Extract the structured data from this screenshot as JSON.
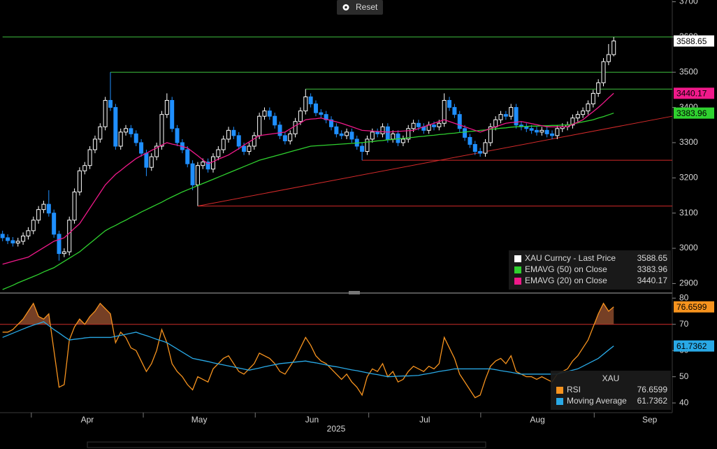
{
  "reset_button": "Reset",
  "chart_data": [
    {
      "type": "candlestick",
      "xlim": [
        -0.5,
        130.4
      ],
      "ylim": [
        2875,
        3705
      ],
      "yticks": [
        2900,
        3000,
        3100,
        3200,
        3300,
        3400,
        3500,
        3600,
        3700
      ],
      "legend": "bottom-right",
      "candles": {
        "name": "XAU Curncy - Last Price",
        "up_color": "#ffffff",
        "down_color": "#1f8fff",
        "open": [
          3040,
          3030,
          3022,
          3015,
          3020,
          3035,
          3050,
          3080,
          3110,
          3125,
          3100,
          3040,
          2985,
          2990,
          3080,
          3160,
          3220,
          3235,
          3280,
          3310,
          3345,
          3420,
          3400,
          3290,
          3330,
          3340,
          3325,
          3300,
          3270,
          3230,
          3260,
          3290,
          3380,
          3420,
          3340,
          3300,
          3280,
          3240,
          3180,
          3235,
          3245,
          3225,
          3260,
          3280,
          3310,
          3335,
          3320,
          3290,
          3275,
          3290,
          3320,
          3375,
          3390,
          3375,
          3350,
          3320,
          3305,
          3325,
          3360,
          3390,
          3430,
          3410,
          3385,
          3380,
          3365,
          3345,
          3325,
          3320,
          3330,
          3310,
          3290,
          3275,
          3310,
          3330,
          3325,
          3345,
          3310,
          3325,
          3300,
          3310,
          3340,
          3355,
          3345,
          3335,
          3350,
          3345,
          3355,
          3420,
          3400,
          3380,
          3340,
          3315,
          3295,
          3275,
          3270,
          3300,
          3345,
          3365,
          3380,
          3375,
          3400,
          3350,
          3345,
          3340,
          3335,
          3330,
          3335,
          3325,
          3320,
          3340,
          3345,
          3350,
          3370,
          3380,
          3390,
          3410,
          3440,
          3470,
          3530,
          3550
        ],
        "high": [
          3050,
          3040,
          3032,
          3030,
          3045,
          3060,
          3090,
          3120,
          3135,
          3165,
          3110,
          3050,
          3000,
          3090,
          3170,
          3230,
          3245,
          3290,
          3320,
          3355,
          3430,
          3500,
          3410,
          3340,
          3350,
          3350,
          3335,
          3310,
          3280,
          3270,
          3300,
          3390,
          3440,
          3430,
          3350,
          3310,
          3290,
          3250,
          3245,
          3255,
          3255,
          3270,
          3290,
          3320,
          3345,
          3345,
          3330,
          3300,
          3300,
          3330,
          3385,
          3400,
          3400,
          3385,
          3360,
          3330,
          3335,
          3370,
          3400,
          3452,
          3440,
          3420,
          3395,
          3390,
          3375,
          3355,
          3335,
          3340,
          3340,
          3320,
          3300,
          3320,
          3340,
          3340,
          3355,
          3355,
          3335,
          3335,
          3320,
          3350,
          3365,
          3365,
          3355,
          3360,
          3360,
          3365,
          3440,
          3430,
          3410,
          3390,
          3350,
          3325,
          3305,
          3285,
          3310,
          3355,
          3375,
          3390,
          3390,
          3410,
          3410,
          3360,
          3355,
          3350,
          3345,
          3345,
          3345,
          3335,
          3350,
          3355,
          3360,
          3380,
          3390,
          3400,
          3420,
          3450,
          3480,
          3540,
          3580,
          3600
        ],
        "low": [
          3020,
          3012,
          3005,
          3005,
          3010,
          3025,
          3040,
          3070,
          3100,
          3090,
          3030,
          2965,
          2975,
          2980,
          3070,
          3150,
          3210,
          3225,
          3270,
          3300,
          3335,
          3390,
          3280,
          3280,
          3320,
          3315,
          3290,
          3260,
          3205,
          3220,
          3250,
          3280,
          3370,
          3330,
          3290,
          3270,
          3230,
          3165,
          3120,
          3225,
          3215,
          3215,
          3250,
          3270,
          3300,
          3310,
          3280,
          3265,
          3265,
          3280,
          3310,
          3365,
          3365,
          3340,
          3310,
          3295,
          3295,
          3315,
          3350,
          3380,
          3400,
          3375,
          3370,
          3355,
          3335,
          3315,
          3310,
          3310,
          3300,
          3280,
          3250,
          3265,
          3300,
          3315,
          3315,
          3300,
          3300,
          3290,
          3290,
          3300,
          3330,
          3335,
          3325,
          3325,
          3335,
          3335,
          3345,
          3390,
          3370,
          3330,
          3305,
          3285,
          3265,
          3260,
          3260,
          3290,
          3335,
          3355,
          3365,
          3365,
          3340,
          3335,
          3330,
          3325,
          3320,
          3320,
          3315,
          3310,
          3310,
          3330,
          3335,
          3340,
          3360,
          3370,
          3380,
          3400,
          3430,
          3460,
          3520,
          3545
        ],
        "close": [
          3030,
          3022,
          3015,
          3020,
          3035,
          3050,
          3080,
          3110,
          3125,
          3100,
          3040,
          2985,
          2990,
          3080,
          3160,
          3220,
          3235,
          3280,
          3310,
          3345,
          3420,
          3400,
          3290,
          3330,
          3340,
          3325,
          3300,
          3270,
          3230,
          3260,
          3290,
          3380,
          3420,
          3340,
          3300,
          3280,
          3240,
          3180,
          3235,
          3245,
          3225,
          3260,
          3280,
          3310,
          3335,
          3320,
          3290,
          3275,
          3290,
          3320,
          3375,
          3390,
          3375,
          3350,
          3320,
          3305,
          3325,
          3360,
          3390,
          3430,
          3410,
          3385,
          3380,
          3365,
          3345,
          3325,
          3320,
          3330,
          3310,
          3290,
          3275,
          3310,
          3330,
          3325,
          3345,
          3310,
          3325,
          3300,
          3310,
          3340,
          3355,
          3345,
          3335,
          3350,
          3345,
          3355,
          3420,
          3400,
          3380,
          3340,
          3315,
          3295,
          3275,
          3270,
          3300,
          3345,
          3365,
          3380,
          3375,
          3400,
          3350,
          3345,
          3340,
          3335,
          3330,
          3335,
          3325,
          3320,
          3340,
          3345,
          3350,
          3370,
          3380,
          3390,
          3410,
          3440,
          3470,
          3530,
          3550,
          3588.65
        ]
      },
      "series": [
        {
          "name": "EMAVG (50) on Close",
          "color": "#2fd12f",
          "values": [
            2883,
            2889,
            2895,
            2902,
            2908,
            2914,
            2920,
            2926,
            2933,
            2939,
            2945,
            2954,
            2963,
            2972,
            2981,
            2990,
            3002,
            3014,
            3026,
            3038,
            3050,
            3058,
            3065,
            3073,
            3080,
            3088,
            3095,
            3103,
            3110,
            3117,
            3124,
            3131,
            3139,
            3146,
            3153,
            3160,
            3166,
            3172,
            3178,
            3184,
            3190,
            3196,
            3202,
            3208,
            3214,
            3220,
            3226,
            3232,
            3238,
            3244,
            3250,
            3254,
            3258,
            3262,
            3266,
            3270,
            3274,
            3278,
            3282,
            3286,
            3290,
            3291,
            3292,
            3293,
            3294,
            3295,
            3296,
            3297,
            3298,
            3299,
            3300,
            3302,
            3303,
            3305,
            3306,
            3308,
            3309,
            3311,
            3312,
            3314,
            3315,
            3317,
            3318,
            3320,
            3321,
            3323,
            3324,
            3326,
            3327,
            3329,
            3330,
            3332,
            3333,
            3335,
            3336,
            3338,
            3339,
            3341,
            3342,
            3344,
            3345,
            3346,
            3346,
            3347,
            3347,
            3348,
            3348,
            3349,
            3349,
            3350,
            3350,
            3353,
            3356,
            3359,
            3362,
            3365,
            3370,
            3374,
            3379,
            3383.96
          ]
        },
        {
          "name": "EMAVG (20) on Close",
          "color": "#f0198a",
          "values": [
            2955,
            2959,
            2963,
            2967,
            2971,
            2975,
            2984,
            2993,
            3002,
            3011,
            3020,
            3025,
            3030,
            3043,
            3057,
            3070,
            3092,
            3114,
            3136,
            3158,
            3180,
            3195,
            3210,
            3221,
            3233,
            3244,
            3255,
            3263,
            3270,
            3278,
            3285,
            3293,
            3300,
            3296,
            3293,
            3289,
            3285,
            3274,
            3263,
            3251,
            3240,
            3246,
            3253,
            3259,
            3265,
            3274,
            3283,
            3293,
            3302,
            3311,
            3320,
            3322,
            3324,
            3326,
            3328,
            3330,
            3339,
            3348,
            3356,
            3365,
            3367,
            3368,
            3370,
            3366,
            3363,
            3359,
            3355,
            3350,
            3345,
            3340,
            3335,
            3334,
            3333,
            3332,
            3331,
            3330,
            3331,
            3332,
            3333,
            3334,
            3335,
            3340,
            3345,
            3350,
            3355,
            3360,
            3365,
            3360,
            3355,
            3350,
            3345,
            3340,
            3335,
            3330,
            3335,
            3340,
            3345,
            3350,
            3355,
            3357,
            3358,
            3360,
            3357,
            3354,
            3351,
            3348,
            3345,
            3345,
            3345,
            3345,
            3345,
            3352,
            3358,
            3365,
            3377,
            3388,
            3400,
            3413,
            3427,
            3440.17
          ]
        }
      ],
      "levels": [
        {
          "value": 3600,
          "x": [
            0,
            130.4
          ],
          "color": "#3fbf3f"
        },
        {
          "value": 3500,
          "x": [
            21,
            130.4
          ],
          "color": "#3fbf3f"
        },
        {
          "value": 3452,
          "x": [
            59,
            130.4
          ],
          "color": "#3fbf3f"
        },
        {
          "value": 3250,
          "x": [
            70,
            130.4
          ],
          "color": "#d42a2a"
        },
        {
          "value": 3120,
          "x": [
            38,
            130.4
          ],
          "color": "#d42a2a"
        }
      ],
      "trend_lines": [
        {
          "x": [
            38,
            130.4
          ],
          "values": [
            3120,
            3375
          ],
          "color": "#d42a2a"
        }
      ]
    },
    {
      "type": "line",
      "title": "XAU",
      "xlim": [
        -0.5,
        130.4
      ],
      "ylim": [
        36.3,
        81.4
      ],
      "yticks": [
        40,
        50,
        60,
        70,
        80
      ],
      "xticks": [
        5.6,
        27.4,
        49.2,
        71.3,
        93.1,
        115.2
      ],
      "xtick_labels": [
        {
          "value": 16.5,
          "label": "Apr"
        },
        {
          "value": 38.3,
          "label": "May"
        },
        {
          "value": 60.25,
          "label": "Jun"
        },
        {
          "value": 82.2,
          "label": "Jul"
        },
        {
          "value": 104.15,
          "label": "Aug"
        },
        {
          "value": 126,
          "label": "Sep"
        }
      ],
      "x_label": "2025",
      "legend": "bottom-right",
      "levels": [
        {
          "value": 70,
          "color": "#d42a2a"
        }
      ],
      "series": [
        {
          "name": "RSI",
          "color": "#f7931e",
          "fill": "#8a4a2c",
          "values": [
            67,
            67,
            68,
            70,
            72,
            75,
            78,
            73,
            72,
            74,
            60,
            46,
            47,
            64,
            69,
            72,
            70,
            73,
            75,
            78,
            76,
            74,
            63,
            67,
            65,
            61,
            60,
            56,
            52,
            55,
            60,
            68,
            63,
            55,
            52,
            50,
            47,
            45,
            50,
            49,
            48,
            53,
            55,
            57,
            58,
            55,
            52,
            51,
            53,
            55,
            59,
            58,
            57,
            55,
            52,
            51,
            54,
            57,
            61,
            65,
            62,
            58,
            56,
            55,
            53,
            51,
            49,
            51,
            48,
            46,
            43,
            50,
            53,
            52,
            55,
            50,
            52,
            48,
            49,
            52,
            54,
            53,
            52,
            54,
            53,
            55,
            65,
            61,
            57,
            51,
            48,
            45,
            42,
            43,
            49,
            54,
            56,
            57,
            55,
            58,
            52,
            51,
            50,
            50,
            49,
            50,
            49,
            48,
            51,
            52,
            53,
            56,
            58,
            61,
            64,
            69,
            74,
            78,
            75,
            76.6599
          ]
        },
        {
          "name": "Moving Average",
          "color": "#29a9e6",
          "values": [
            65,
            65.8,
            66.6,
            67.4,
            68.2,
            69,
            69.7,
            70.3,
            71,
            69.5,
            68,
            66.7,
            65.3,
            64,
            64.3,
            64.5,
            64.8,
            65,
            65,
            65,
            65,
            65,
            65.4,
            65.8,
            66.2,
            66.6,
            67,
            66.3,
            65.7,
            65,
            64.3,
            63.7,
            63,
            61.8,
            60.6,
            59.4,
            58.2,
            57,
            56.6,
            56.2,
            55.8,
            55.3,
            54.9,
            54.5,
            54.1,
            53.7,
            53.3,
            52.9,
            52.5,
            52.9,
            53.3,
            53.8,
            54.2,
            54.6,
            55,
            55.2,
            55.4,
            55.6,
            55.8,
            56,
            55.6,
            55.3,
            54.9,
            54.5,
            54.1,
            53.8,
            53.4,
            53,
            52.6,
            52.3,
            51.9,
            51.5,
            51.1,
            50.8,
            50.4,
            50,
            50.1,
            50.2,
            50.3,
            50.3,
            50.4,
            50.5,
            50.9,
            51.2,
            51.6,
            52,
            52.3,
            52.6,
            53,
            53,
            53,
            53,
            53,
            53,
            53,
            53,
            52.7,
            52.3,
            52,
            51.7,
            51.3,
            51,
            51,
            51,
            51,
            51,
            51,
            51,
            51,
            51.5,
            52,
            52.5,
            53,
            54,
            55,
            56,
            57,
            58.6,
            60.2,
            61.7362
          ]
        }
      ]
    }
  ]
}
